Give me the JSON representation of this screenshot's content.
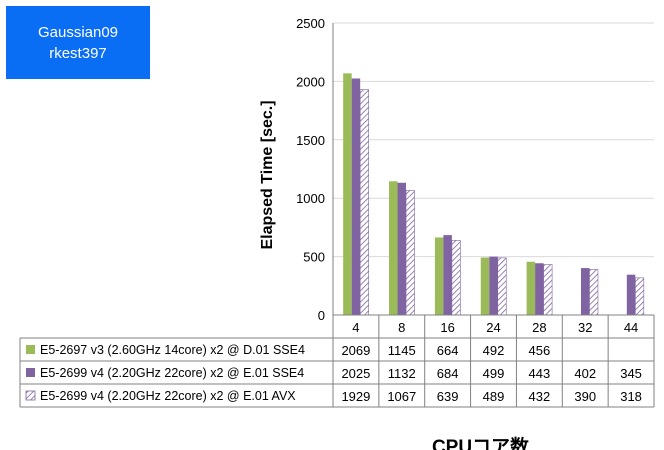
{
  "badge": {
    "line1": "Gaussian09",
    "line2": "rkest397"
  },
  "chart_data": {
    "type": "bar",
    "title": "",
    "xlabel": "CPUコア数",
    "ylabel": "Elapsed Time [sec.]",
    "ylim": [
      0,
      2500
    ],
    "yticks": [
      0,
      500,
      1000,
      1500,
      2000,
      2500
    ],
    "grid": true,
    "categories": [
      "4",
      "8",
      "16",
      "24",
      "28",
      "32",
      "44"
    ],
    "series": [
      {
        "name": "E5-2697 v3 (2.60GHz 14core) x2 @ D.01 SSE4",
        "values": [
          2069,
          1145,
          664,
          492,
          456,
          null,
          null
        ],
        "color": "#9bbb59",
        "pattern": "solid"
      },
      {
        "name": "E5-2699 v4 (2.20GHz 22core) x2 @ E.01 SSE4",
        "values": [
          2025,
          1132,
          684,
          499,
          443,
          402,
          345
        ],
        "color": "#8064a2",
        "pattern": "solid"
      },
      {
        "name": "E5-2699 v4 (2.20GHz 22core) x2 @ E.01 AVX",
        "values": [
          1929,
          1067,
          639,
          489,
          432,
          390,
          318
        ],
        "color": "#8064a2",
        "pattern": "hatch"
      }
    ],
    "legend": "data-table"
  }
}
